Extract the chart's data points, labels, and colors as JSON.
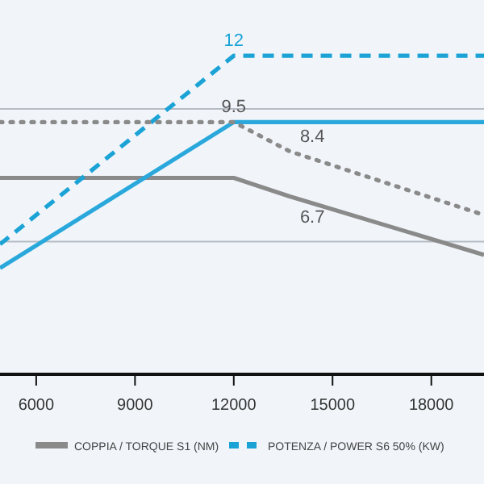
{
  "chart_data": {
    "type": "line",
    "xlim": [
      4900,
      19600
    ],
    "xticks": [
      6000,
      9000,
      12000,
      15000,
      18000
    ],
    "ylim": [
      0,
      14.1
    ],
    "tick_labels": "x",
    "legend": "bottom",
    "marker": "none",
    "ref_lines": [
      {
        "axis": "y",
        "value": 5,
        "color": "#b5bcc4"
      },
      {
        "axis": "y",
        "value": 10,
        "color": "#b5bcc4"
      }
    ],
    "series": [
      {
        "name": "COPPIA / TORQUE S1 (NM)",
        "color": "#8a8a8a",
        "line_style": "solid",
        "x": [
          4900,
          12000,
          13700,
          19600
        ],
        "values": [
          7.4,
          7.4,
          6.7,
          4.5
        ],
        "value_labels": [
          null,
          null,
          "6.7",
          null
        ]
      },
      {
        "name": "POTENZA / POWER S6 50% (KW)",
        "color": "#1ba3d6",
        "line_style": "dashed",
        "x": [
          4900,
          12000,
          19600
        ],
        "values": [
          4.9,
          12,
          12
        ],
        "value_labels": [
          null,
          "12",
          null
        ]
      },
      {
        "color": "#2aa8dc",
        "line_style": "solid",
        "x": [
          4900,
          12000,
          19600
        ],
        "values": [
          4.0,
          9.5,
          9.5
        ],
        "value_labels": [
          null,
          "9.5",
          null
        ]
      },
      {
        "color": "#8a8a8a",
        "line_style": "dotted",
        "x": [
          4900,
          12000,
          13700,
          19600
        ],
        "values": [
          9.5,
          9.5,
          8.4,
          6.0
        ],
        "value_labels": [
          null,
          null,
          "8.4",
          null
        ]
      }
    ]
  }
}
